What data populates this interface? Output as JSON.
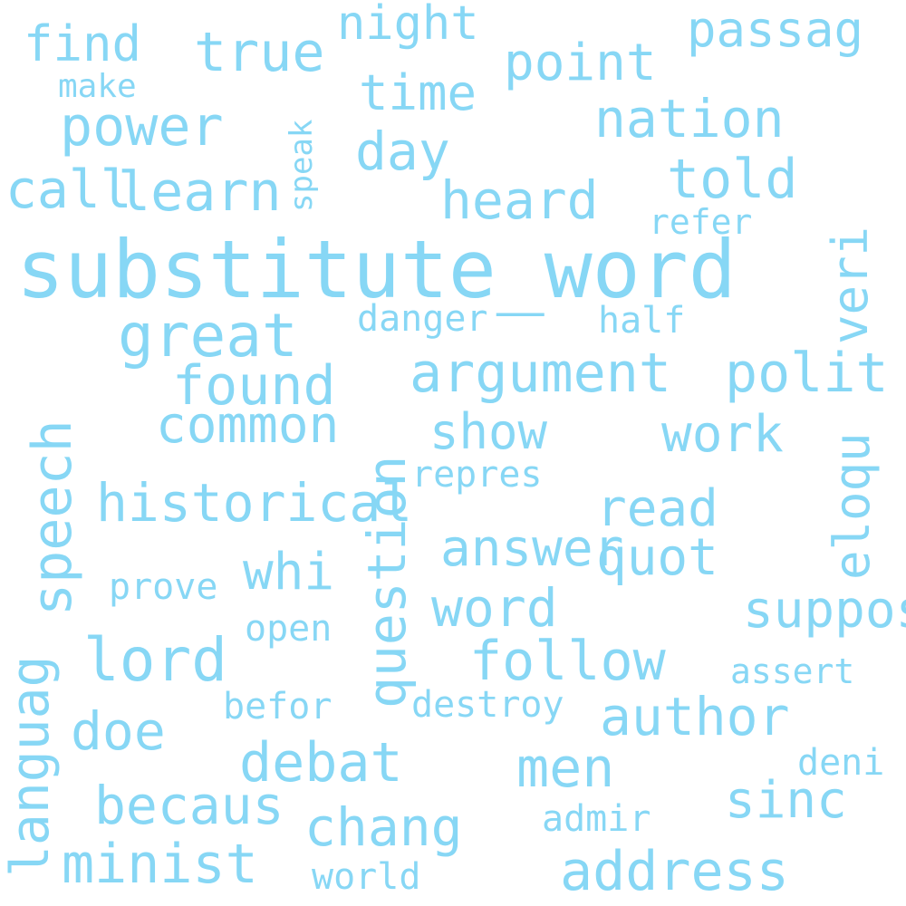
{
  "colors": {
    "word": "#87d7f5",
    "background": "#ffffff"
  },
  "words": [
    {
      "text": "substitute_word",
      "weight": 1.0
    },
    {
      "text": "argument",
      "weight": 0.55
    },
    {
      "text": "speech",
      "weight": 0.55
    },
    {
      "text": "great",
      "weight": 0.5
    },
    {
      "text": "question",
      "weight": 0.48
    },
    {
      "text": "lord",
      "weight": 0.47
    },
    {
      "text": "address",
      "weight": 0.44
    },
    {
      "text": "languag",
      "weight": 0.44
    },
    {
      "text": "veri",
      "weight": 0.42
    },
    {
      "text": "author",
      "weight": 0.42
    },
    {
      "text": "heard",
      "weight": 0.42
    },
    {
      "text": "polit",
      "weight": 0.4
    },
    {
      "text": "eloqu",
      "weight": 0.4
    },
    {
      "text": "power",
      "weight": 0.4
    },
    {
      "text": "historical",
      "weight": 0.4
    },
    {
      "text": "common",
      "weight": 0.4
    },
    {
      "text": "found",
      "weight": 0.4
    },
    {
      "text": "debat",
      "weight": 0.4
    },
    {
      "text": "follow",
      "weight": 0.38
    },
    {
      "text": "told",
      "weight": 0.38
    },
    {
      "text": "nation",
      "weight": 0.38
    },
    {
      "text": "point",
      "weight": 0.38
    },
    {
      "text": "passag",
      "weight": 0.38
    },
    {
      "text": "call",
      "weight": 0.38
    },
    {
      "text": "learn",
      "weight": 0.38
    },
    {
      "text": "minist",
      "weight": 0.36
    },
    {
      "text": "quot",
      "weight": 0.36
    },
    {
      "text": "suppos",
      "weight": 0.36
    },
    {
      "text": "show",
      "weight": 0.36
    },
    {
      "text": "work",
      "weight": 0.36
    },
    {
      "text": "find",
      "weight": 0.36
    },
    {
      "text": "true",
      "weight": 0.36
    },
    {
      "text": "time",
      "weight": 0.36
    },
    {
      "text": "answer",
      "weight": 0.36
    },
    {
      "text": "word",
      "weight": 0.36
    },
    {
      "text": "read",
      "weight": 0.36
    },
    {
      "text": "becaus",
      "weight": 0.36
    },
    {
      "text": "chang",
      "weight": 0.36
    },
    {
      "text": "sinc",
      "weight": 0.36
    },
    {
      "text": "doe",
      "weight": 0.36
    },
    {
      "text": "men",
      "weight": 0.36
    },
    {
      "text": "day",
      "weight": 0.36
    },
    {
      "text": "whi",
      "weight": 0.36
    },
    {
      "text": "night",
      "weight": 0.3
    },
    {
      "text": "danger",
      "weight": 0.28
    },
    {
      "text": "destroy",
      "weight": 0.26
    },
    {
      "text": "half",
      "weight": 0.26
    },
    {
      "text": "refer",
      "weight": 0.26
    },
    {
      "text": "repres",
      "weight": 0.26
    },
    {
      "text": "prove",
      "weight": 0.26
    },
    {
      "text": "open",
      "weight": 0.26
    },
    {
      "text": "befor",
      "weight": 0.26
    },
    {
      "text": "world",
      "weight": 0.26
    },
    {
      "text": "admir",
      "weight": 0.26
    },
    {
      "text": "assert",
      "weight": 0.26
    },
    {
      "text": "deni",
      "weight": 0.26
    },
    {
      "text": "make",
      "weight": 0.24
    },
    {
      "text": "speak",
      "weight": 0.24
    }
  ]
}
